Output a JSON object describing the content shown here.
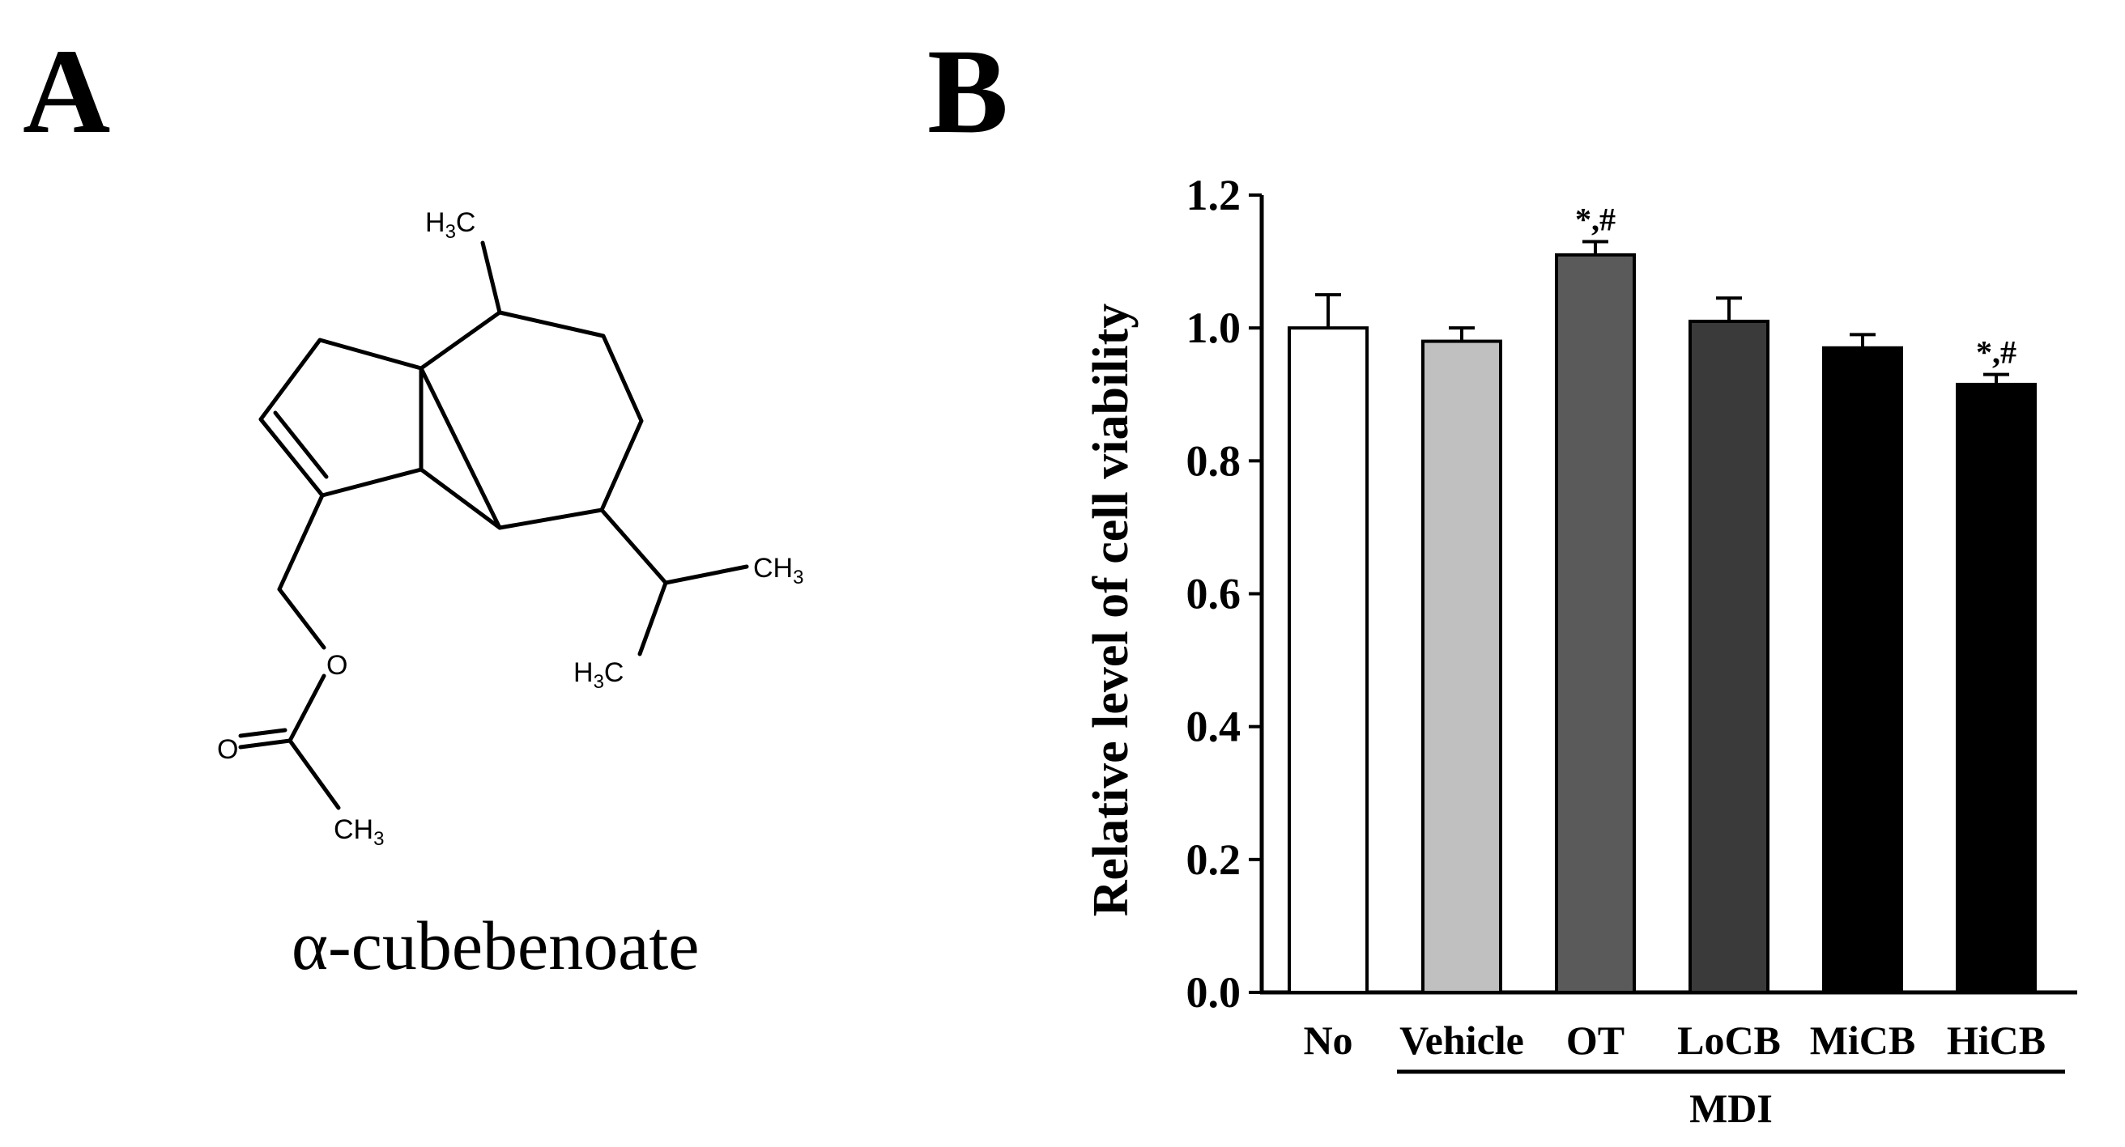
{
  "panel_a": {
    "letter": "A",
    "compound_name": "α-cubebenoate",
    "atom_labels": {
      "methyl_top": "H3C",
      "methyl_right": "CH3",
      "methyl_left": "H3C",
      "ester_oxygen": "O",
      "carbonyl_oxygen": "O",
      "acetyl_methyl": "CH3"
    }
  },
  "panel_b": {
    "letter": "B"
  },
  "chart_data": {
    "type": "bar",
    "title": "",
    "xlabel": "",
    "ylabel": "Relative level of cell viability",
    "ylim": [
      0,
      1.2
    ],
    "yticks": [
      "0.0",
      "0.2",
      "0.4",
      "0.6",
      "0.8",
      "1.0",
      "1.2"
    ],
    "categories": [
      "No",
      "Vehicle",
      "OT",
      "LoCB",
      "MiCB",
      "HiCB"
    ],
    "values": [
      1.0,
      0.98,
      1.11,
      1.01,
      0.97,
      0.915
    ],
    "errors": [
      0.05,
      0.02,
      0.02,
      0.035,
      0.02,
      0.015
    ],
    "annotations": [
      "",
      "",
      "*,#",
      "",
      "",
      "*,#"
    ],
    "bar_colors": [
      "#ffffff",
      "#c0c0c0",
      "#5a5a5a",
      "#3a3a3a",
      "#000000",
      "#000000"
    ],
    "group_label": "MDI",
    "group_members": [
      "Vehicle",
      "OT",
      "LoCB",
      "MiCB",
      "HiCB"
    ]
  }
}
